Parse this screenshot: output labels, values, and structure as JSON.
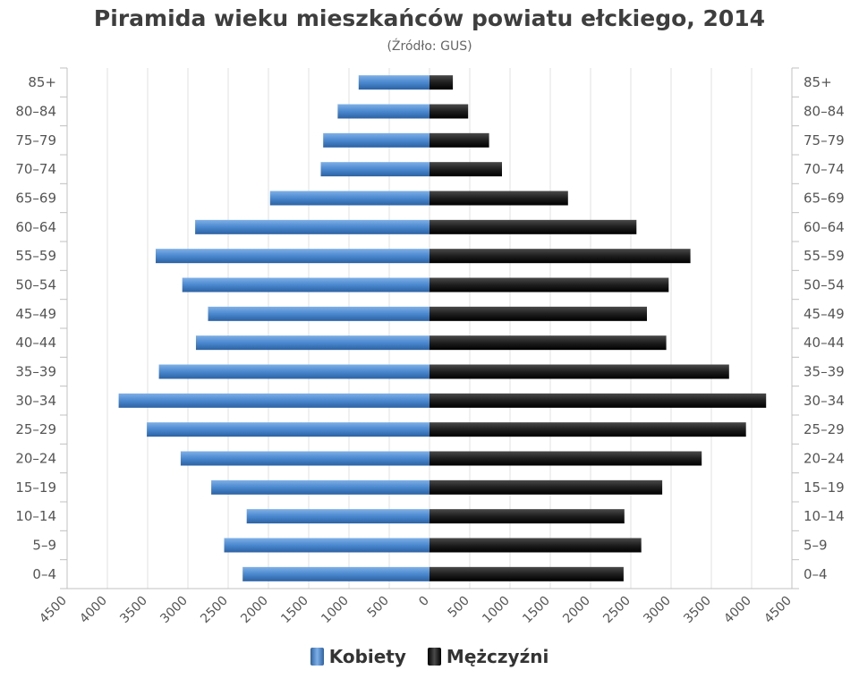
{
  "chart_data": {
    "type": "bar",
    "orientation": "horizontal-population-pyramid",
    "title": "Piramida wieku mieszkańców powiatu ełckiego, 2014",
    "subtitle": "(Źródło: GUS)",
    "categories": [
      "85+",
      "80-84",
      "75-79",
      "70-74",
      "65-69",
      "60-64",
      "55-59",
      "50-54",
      "45-49",
      "40-44",
      "35-39",
      "30-34",
      "25-29",
      "20-24",
      "15-19",
      "10-14",
      "5-9",
      "0-4"
    ],
    "series": [
      {
        "name": "Kobiety",
        "side": "left",
        "color": "#3d7cc4",
        "values": [
          880,
          1140,
          1320,
          1350,
          1980,
          2910,
          3400,
          3070,
          2750,
          2900,
          3360,
          3860,
          3510,
          3090,
          2710,
          2270,
          2550,
          2320
        ]
      },
      {
        "name": "Mężczyźni",
        "side": "right",
        "color": "#1a1a1a",
        "values": [
          290,
          480,
          740,
          900,
          1720,
          2570,
          3240,
          2970,
          2700,
          2940,
          3720,
          4180,
          3930,
          3380,
          2890,
          2420,
          2630,
          2410
        ]
      }
    ],
    "x_ticks_left": [
      "4500",
      "4000",
      "3500",
      "3000",
      "2500",
      "2000",
      "1500",
      "1000",
      "500"
    ],
    "x_ticks_right": [
      "0",
      "500",
      "1000",
      "1500",
      "2000",
      "2500",
      "3000",
      "3500",
      "4000",
      "4500"
    ],
    "xlim": [
      -4500,
      4500
    ],
    "grid": true,
    "legend": "bottom-center"
  }
}
